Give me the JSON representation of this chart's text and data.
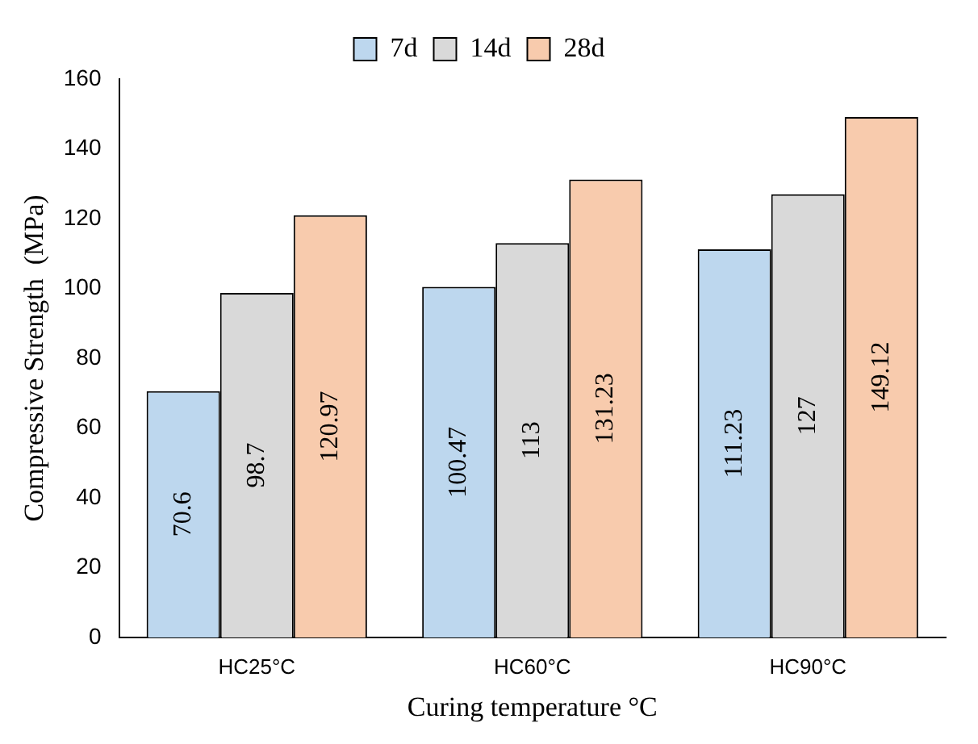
{
  "chart_data": {
    "type": "bar",
    "xlabel": "Curing temperature °C",
    "ylabel": "Compressive Strength  (MPa)",
    "categories": [
      "HC25°C",
      "HC60°C",
      "HC90°C"
    ],
    "series": [
      {
        "name": "7d",
        "color": "#bdd7ee",
        "values": [
          70.6,
          100.47,
          111.23
        ]
      },
      {
        "name": "14d",
        "color": "#d9d9d9",
        "values": [
          98.7,
          113,
          127
        ]
      },
      {
        "name": "28d",
        "color": "#f8cbad",
        "values": [
          120.97,
          131.23,
          149.12
        ]
      }
    ],
    "ylim": [
      0,
      160
    ],
    "yticks": [
      0,
      20,
      40,
      60,
      80,
      100,
      120,
      140,
      160
    ],
    "grid": false,
    "legend": "top",
    "data_labels": true
  }
}
